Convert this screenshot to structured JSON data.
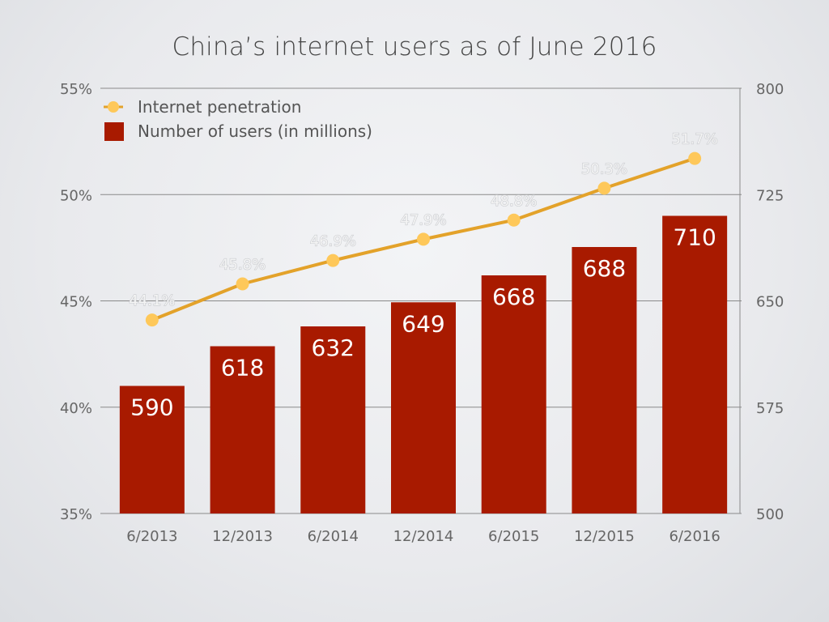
{
  "title": "China’s internet users as of June 2016",
  "colors": {
    "bar": "#a81a00",
    "line": "#e3a22a",
    "marker": "#fec85a",
    "grid": "#8a8a8a"
  },
  "legend": [
    {
      "label": "Internet penetration",
      "icon": "line-marker-icon"
    },
    {
      "label": "Number of users (in millions)",
      "icon": "bar-swatch-icon"
    }
  ],
  "chart_data": {
    "type": "bar+line",
    "title": "China’s internet users as of June 2016",
    "categories": [
      "6/2013",
      "12/2013",
      "6/2014",
      "12/2014",
      "6/2015",
      "12/2015",
      "6/2016"
    ],
    "series": [
      {
        "name": "Number of users (in millions)",
        "type": "bar",
        "axis": "right",
        "values": [
          590,
          618,
          632,
          649,
          668,
          688,
          710
        ],
        "labels": [
          "590",
          "618",
          "632",
          "649",
          "668",
          "688",
          "710"
        ]
      },
      {
        "name": "Internet penetration",
        "type": "line",
        "axis": "left",
        "values": [
          44.1,
          45.8,
          46.9,
          47.9,
          48.8,
          50.3,
          51.7
        ],
        "labels": [
          "44.1%",
          "45.8%",
          "46.9%",
          "47.9%",
          "48.8%",
          "50.3%",
          "51.7%"
        ]
      }
    ],
    "left_axis": {
      "ylim": [
        35,
        55
      ],
      "ticks": [
        "55%",
        "50%",
        "45%",
        "40%",
        "35%"
      ]
    },
    "right_axis": {
      "ylim": [
        500,
        800
      ],
      "ticks": [
        "800",
        "725",
        "650",
        "575",
        "500"
      ]
    },
    "grid": true,
    "legend_position": "top-left inside"
  }
}
